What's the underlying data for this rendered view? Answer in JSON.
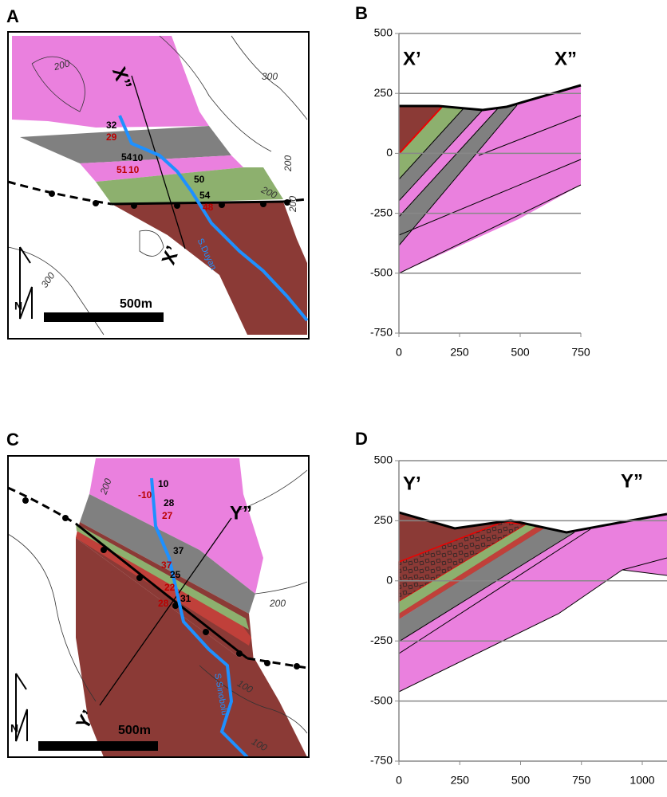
{
  "panels": [
    {
      "label": "A",
      "contour_labels": [
        "200",
        "300",
        "200",
        "200",
        "200",
        "300"
      ],
      "measurements": {
        "black": [
          "32",
          "54",
          "10",
          "50",
          "54"
        ],
        "red": [
          "29",
          "51",
          "10",
          "48"
        ]
      },
      "river": "S.Duyan",
      "section_ends": [
        "X’",
        "X”"
      ],
      "scale_bar": "500m",
      "north": "N"
    },
    {
      "label": "B",
      "end_labels": [
        "X’",
        "X”"
      ],
      "xlim": [
        0,
        750
      ],
      "ylim": [
        -750,
        500
      ],
      "xticks": [
        0,
        250,
        500,
        750
      ],
      "yticks": [
        500,
        250,
        0,
        -250,
        -500,
        -750
      ]
    },
    {
      "label": "C",
      "contour_labels": [
        "200",
        "200",
        "100",
        "100"
      ],
      "measurements": {
        "black": [
          "10",
          "28",
          "37",
          "25",
          "31"
        ],
        "red": [
          "-10",
          "27",
          "37",
          "22",
          "28"
        ]
      },
      "river": "S.Sinobolu",
      "section_ends": [
        "Y’",
        "Y”"
      ],
      "scale_bar": "500m",
      "north": "N"
    },
    {
      "label": "D",
      "end_labels": [
        "Y’",
        "Y”"
      ],
      "xlim": [
        0,
        1000
      ],
      "ylim": [
        -750,
        500
      ],
      "xticks": [
        0,
        250,
        500,
        750,
        1000
      ],
      "yticks": [
        500,
        250,
        0,
        -250,
        -500,
        -750
      ]
    }
  ]
}
